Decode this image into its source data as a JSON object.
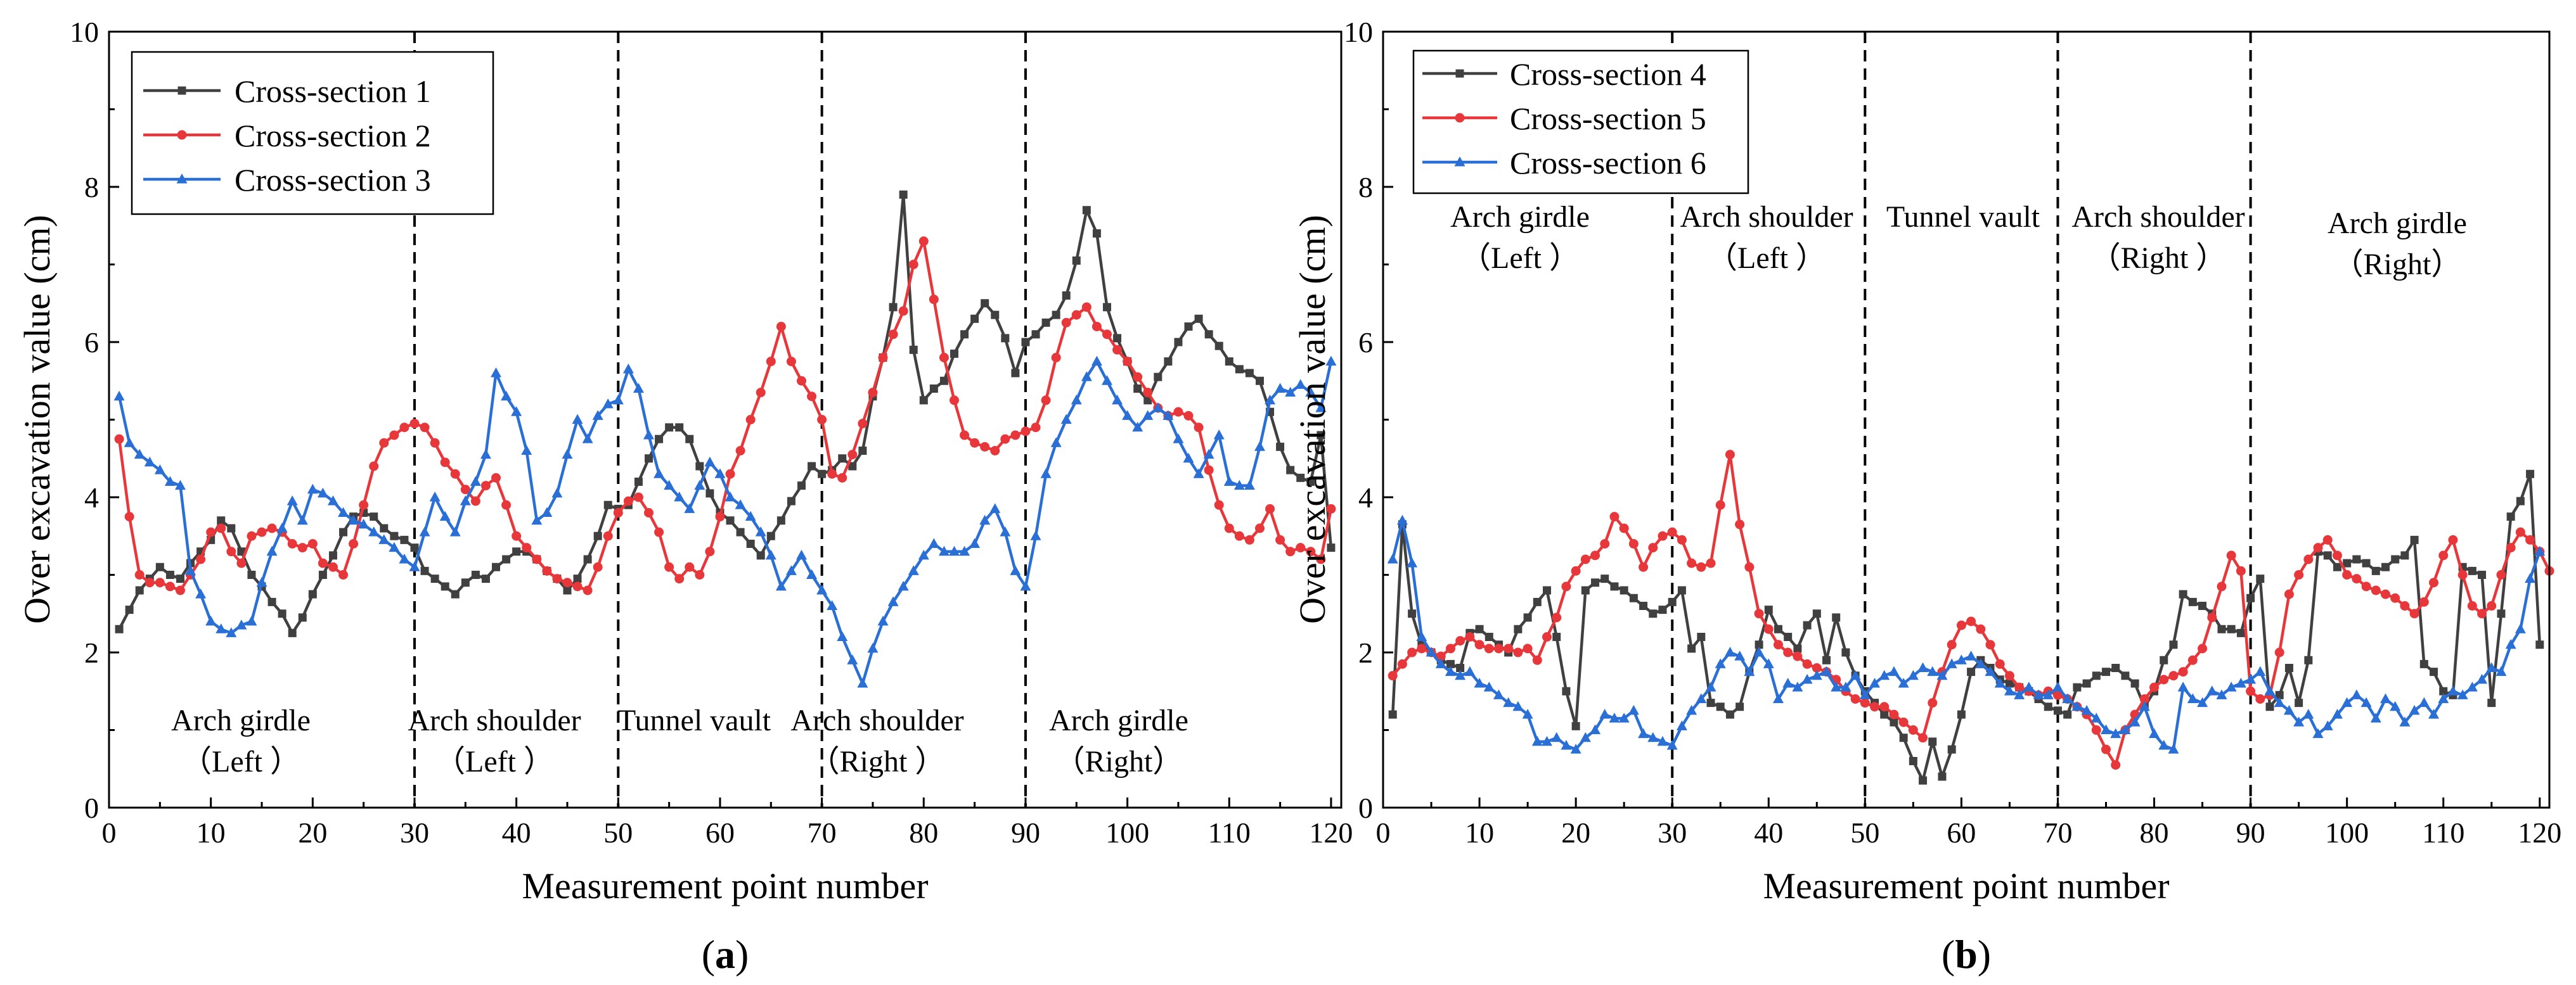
{
  "chart_data": [
    {
      "type": "line",
      "panel_label": "a",
      "xlabel": "Measurement point number",
      "ylabel": "Over excavation value (cm)",
      "xlim": [
        0,
        121
      ],
      "ylim": [
        0,
        10
      ],
      "x_ticks": [
        0,
        10,
        20,
        30,
        40,
        50,
        60,
        70,
        80,
        90,
        100,
        110,
        120
      ],
      "y_ticks": [
        0,
        2,
        4,
        6,
        8,
        10
      ],
      "dividers": [
        30,
        50,
        70,
        90
      ],
      "legend_position": "top-left",
      "regions": [
        {
          "line1": "Arch girdle",
          "line2": "（Left ）"
        },
        {
          "line1": "Arch shoulder",
          "line2": "（Left ）"
        },
        {
          "line1": "Tunnel vault",
          "line2": ""
        },
        {
          "line1": "Arch shoulder",
          "line2": "（Right ）"
        },
        {
          "line1": "Arch girdle",
          "line2": "（Right）"
        }
      ],
      "series": [
        {
          "name": "Cross-section 1",
          "color": "#404040",
          "marker": "square",
          "values": [
            2.3,
            2.55,
            2.8,
            2.95,
            3.1,
            3.0,
            2.95,
            3.15,
            3.3,
            3.45,
            3.7,
            3.6,
            3.3,
            3.0,
            2.85,
            2.65,
            2.5,
            2.25,
            2.45,
            2.75,
            3.0,
            3.25,
            3.55,
            3.75,
            3.8,
            3.75,
            3.6,
            3.5,
            3.45,
            3.35,
            3.05,
            2.95,
            2.85,
            2.75,
            2.9,
            3.0,
            2.95,
            3.1,
            3.2,
            3.3,
            3.3,
            3.2,
            3.05,
            2.95,
            2.8,
            2.95,
            3.2,
            3.5,
            3.9,
            3.85,
            3.9,
            4.2,
            4.5,
            4.75,
            4.9,
            4.9,
            4.75,
            4.4,
            4.05,
            3.8,
            3.7,
            3.55,
            3.4,
            3.25,
            3.5,
            3.7,
            3.95,
            4.15,
            4.4,
            4.3,
            4.35,
            4.5,
            4.4,
            4.6,
            5.3,
            5.8,
            6.45,
            7.9,
            5.9,
            5.25,
            5.4,
            5.5,
            5.85,
            6.1,
            6.3,
            6.5,
            6.35,
            6.05,
            5.6,
            6.0,
            6.1,
            6.25,
            6.35,
            6.6,
            7.05,
            7.7,
            7.4,
            6.45,
            6.05,
            5.75,
            5.4,
            5.25,
            5.55,
            5.75,
            6.0,
            6.2,
            6.3,
            6.1,
            5.95,
            5.75,
            5.65,
            5.6,
            5.5,
            5.1,
            4.65,
            4.35,
            4.25,
            4.2,
            4.8,
            3.35
          ]
        },
        {
          "name": "Cross-section 2",
          "color": "#e8373a",
          "marker": "circle",
          "values": [
            4.75,
            3.75,
            3.0,
            2.9,
            2.9,
            2.85,
            2.8,
            3.0,
            3.2,
            3.55,
            3.6,
            3.3,
            3.15,
            3.5,
            3.55,
            3.6,
            3.55,
            3.4,
            3.35,
            3.4,
            3.15,
            3.1,
            3.0,
            3.4,
            3.9,
            4.4,
            4.7,
            4.8,
            4.9,
            4.95,
            4.9,
            4.7,
            4.45,
            4.3,
            4.1,
            3.95,
            4.15,
            4.25,
            3.9,
            3.5,
            3.35,
            3.2,
            3.05,
            2.95,
            2.9,
            2.85,
            2.8,
            3.1,
            3.5,
            3.8,
            3.95,
            4.0,
            3.8,
            3.55,
            3.1,
            2.95,
            3.1,
            3.0,
            3.3,
            3.75,
            4.3,
            4.6,
            5.0,
            5.35,
            5.75,
            6.2,
            5.75,
            5.5,
            5.3,
            5.0,
            4.3,
            4.25,
            4.55,
            4.95,
            5.35,
            5.8,
            6.1,
            6.4,
            7.0,
            7.3,
            6.55,
            5.8,
            5.25,
            4.8,
            4.7,
            4.65,
            4.6,
            4.75,
            4.8,
            4.85,
            4.9,
            5.25,
            5.8,
            6.25,
            6.35,
            6.45,
            6.2,
            6.1,
            5.9,
            5.75,
            5.55,
            5.35,
            5.15,
            5.05,
            5.1,
            5.05,
            4.9,
            4.35,
            3.9,
            3.6,
            3.5,
            3.45,
            3.6,
            3.85,
            3.45,
            3.3,
            3.35,
            3.3,
            3.2,
            3.85
          ]
        },
        {
          "name": "Cross-section 3",
          "color": "#2a6fd6",
          "marker": "triangle",
          "values": [
            5.3,
            4.7,
            4.55,
            4.45,
            4.35,
            4.2,
            4.15,
            3.05,
            2.75,
            2.4,
            2.3,
            2.25,
            2.35,
            2.4,
            2.9,
            3.3,
            3.6,
            3.95,
            3.7,
            4.1,
            4.05,
            3.95,
            3.8,
            3.7,
            3.65,
            3.55,
            3.45,
            3.35,
            3.2,
            3.1,
            3.55,
            4.0,
            3.75,
            3.55,
            3.95,
            4.2,
            4.55,
            5.6,
            5.3,
            5.1,
            4.6,
            3.7,
            3.8,
            4.05,
            4.55,
            5.0,
            4.75,
            5.05,
            5.2,
            5.25,
            5.65,
            5.4,
            4.8,
            4.3,
            4.15,
            4.0,
            3.85,
            4.15,
            4.45,
            4.3,
            4.0,
            3.9,
            3.75,
            3.55,
            3.25,
            2.85,
            3.05,
            3.25,
            3.0,
            2.8,
            2.6,
            2.2,
            1.9,
            1.6,
            2.05,
            2.4,
            2.65,
            2.85,
            3.05,
            3.25,
            3.4,
            3.3,
            3.3,
            3.3,
            3.4,
            3.7,
            3.85,
            3.55,
            3.05,
            2.85,
            3.5,
            4.3,
            4.7,
            5.0,
            5.25,
            5.55,
            5.75,
            5.5,
            5.25,
            5.05,
            4.9,
            5.05,
            5.15,
            5.05,
            4.75,
            4.5,
            4.3,
            4.55,
            4.8,
            4.2,
            4.15,
            4.15,
            4.65,
            5.25,
            5.4,
            5.35,
            5.45,
            5.35,
            5.15,
            5.75
          ]
        }
      ]
    },
    {
      "type": "line",
      "panel_label": "b",
      "xlabel": "Measurement point number",
      "ylabel": "Over excavation value (cm)",
      "xlim": [
        0,
        121
      ],
      "ylim": [
        0,
        10
      ],
      "x_ticks": [
        0,
        10,
        20,
        30,
        40,
        50,
        60,
        70,
        80,
        90,
        100,
        110,
        120
      ],
      "y_ticks": [
        0,
        2,
        4,
        6,
        8,
        10
      ],
      "dividers": [
        30,
        50,
        70,
        90
      ],
      "legend_position": "top-left",
      "regions": [
        {
          "line1": "Arch girdle",
          "line2": "（Left ）"
        },
        {
          "line1": "Arch shoulder",
          "line2": "（Left ）"
        },
        {
          "line1": "Tunnel vault",
          "line2": ""
        },
        {
          "line1": "Arch shoulder",
          "line2": "（Right ）"
        },
        {
          "line1": "Arch girdle",
          "line2": "（Right）"
        }
      ],
      "series": [
        {
          "name": "Cross-section 4",
          "color": "#404040",
          "marker": "square",
          "values": [
            1.2,
            3.65,
            2.5,
            2.1,
            2.0,
            1.9,
            1.85,
            1.8,
            2.25,
            2.3,
            2.2,
            2.1,
            2.0,
            2.3,
            2.45,
            2.65,
            2.8,
            2.2,
            1.5,
            1.05,
            2.8,
            2.9,
            2.95,
            2.85,
            2.8,
            2.7,
            2.6,
            2.5,
            2.55,
            2.65,
            2.8,
            2.05,
            2.2,
            1.35,
            1.3,
            1.2,
            1.3,
            1.75,
            2.1,
            2.55,
            2.3,
            2.2,
            2.05,
            2.35,
            2.5,
            1.9,
            2.45,
            2.0,
            1.7,
            1.5,
            1.35,
            1.2,
            1.1,
            0.9,
            0.6,
            0.35,
            0.85,
            0.4,
            0.75,
            1.2,
            1.75,
            1.9,
            1.8,
            1.65,
            1.6,
            1.55,
            1.5,
            1.4,
            1.3,
            1.25,
            1.2,
            1.55,
            1.6,
            1.7,
            1.75,
            1.8,
            1.7,
            1.6,
            1.3,
            1.5,
            1.9,
            2.1,
            2.75,
            2.65,
            2.6,
            2.5,
            2.3,
            2.3,
            2.25,
            2.7,
            2.95,
            1.3,
            1.45,
            1.8,
            1.35,
            1.9,
            3.3,
            3.25,
            3.1,
            3.15,
            3.2,
            3.15,
            3.05,
            3.1,
            3.2,
            3.25,
            3.45,
            1.85,
            1.75,
            1.5,
            1.45,
            3.1,
            3.05,
            3.0,
            1.35,
            2.5,
            3.75,
            3.95,
            4.3,
            2.1
          ]
        },
        {
          "name": "Cross-section 5",
          "color": "#e8373a",
          "marker": "circle",
          "values": [
            1.7,
            1.85,
            2.0,
            2.05,
            2.0,
            1.95,
            2.05,
            2.15,
            2.2,
            2.1,
            2.05,
            2.05,
            2.05,
            2.0,
            2.05,
            1.9,
            2.2,
            2.45,
            2.85,
            3.05,
            3.2,
            3.25,
            3.4,
            3.75,
            3.6,
            3.4,
            3.1,
            3.35,
            3.5,
            3.55,
            3.45,
            3.15,
            3.1,
            3.15,
            3.9,
            4.55,
            3.65,
            3.1,
            2.5,
            2.3,
            2.1,
            2.0,
            1.95,
            1.85,
            1.8,
            1.75,
            1.65,
            1.5,
            1.4,
            1.35,
            1.3,
            1.3,
            1.2,
            1.1,
            1.0,
            0.9,
            1.35,
            1.75,
            2.1,
            2.35,
            2.4,
            2.3,
            2.1,
            1.85,
            1.7,
            1.55,
            1.5,
            1.45,
            1.5,
            1.45,
            1.4,
            1.3,
            1.2,
            1.0,
            0.75,
            0.55,
            1.0,
            1.2,
            1.4,
            1.55,
            1.65,
            1.7,
            1.75,
            1.9,
            2.05,
            2.45,
            2.85,
            3.25,
            3.05,
            1.5,
            1.4,
            1.45,
            2.0,
            2.75,
            3.0,
            3.2,
            3.35,
            3.45,
            3.25,
            3.0,
            2.95,
            2.85,
            2.8,
            2.75,
            2.7,
            2.6,
            2.5,
            2.65,
            2.9,
            3.25,
            3.45,
            3.0,
            2.6,
            2.5,
            2.6,
            3.0,
            3.35,
            3.55,
            3.45,
            3.3,
            3.05
          ]
        },
        {
          "name": "Cross-section 6",
          "color": "#2a6fd6",
          "marker": "triangle",
          "values": [
            3.2,
            3.7,
            3.15,
            2.2,
            2.0,
            1.85,
            1.75,
            1.7,
            1.75,
            1.6,
            1.55,
            1.45,
            1.35,
            1.3,
            1.2,
            0.85,
            0.85,
            0.9,
            0.8,
            0.75,
            0.9,
            1.0,
            1.2,
            1.15,
            1.15,
            1.25,
            0.95,
            0.9,
            0.85,
            0.8,
            1.05,
            1.25,
            1.4,
            1.55,
            1.85,
            2.0,
            1.95,
            1.75,
            2.0,
            1.85,
            1.4,
            1.6,
            1.55,
            1.65,
            1.7,
            1.75,
            1.55,
            1.55,
            1.7,
            1.45,
            1.6,
            1.7,
            1.75,
            1.6,
            1.7,
            1.8,
            1.75,
            1.7,
            1.85,
            1.9,
            1.95,
            1.85,
            1.75,
            1.6,
            1.5,
            1.45,
            1.55,
            1.45,
            1.45,
            1.55,
            1.4,
            1.3,
            1.25,
            1.15,
            1.0,
            0.95,
            1.0,
            1.1,
            1.3,
            0.95,
            0.8,
            0.75,
            1.55,
            1.4,
            1.35,
            1.5,
            1.45,
            1.55,
            1.6,
            1.65,
            1.75,
            1.5,
            1.35,
            1.25,
            1.1,
            1.2,
            0.95,
            1.05,
            1.2,
            1.35,
            1.45,
            1.35,
            1.15,
            1.4,
            1.3,
            1.1,
            1.25,
            1.35,
            1.2,
            1.4,
            1.5,
            1.45,
            1.55,
            1.65,
            1.8,
            1.75,
            2.1,
            2.3,
            2.95,
            3.3
          ]
        }
      ]
    }
  ]
}
